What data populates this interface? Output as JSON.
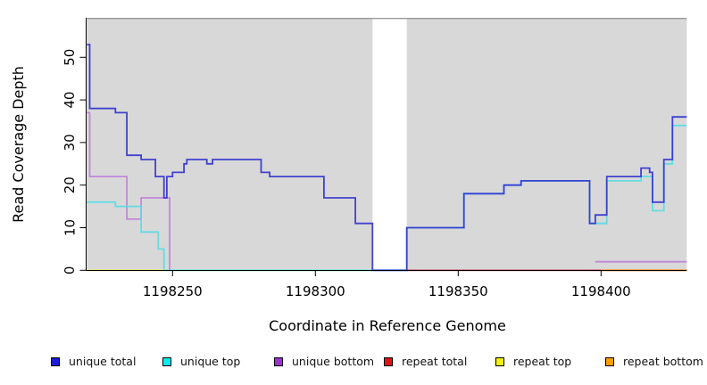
{
  "chart_data": {
    "type": "line",
    "step": true,
    "title": "",
    "xlabel": "Coordinate in Reference Genome",
    "ylabel": "Read Coverage Depth",
    "xticks": [
      1198250,
      1198300,
      1198350,
      1198400
    ],
    "yticks": [
      0,
      10,
      20,
      30,
      40,
      50
    ],
    "xlim": [
      1198220,
      1198430
    ],
    "ylim": [
      0,
      59
    ],
    "plot_bg_color": "#d8d8d8",
    "masked_region": {
      "x_start": 1198320,
      "x_end": 1198332,
      "color": "#ffffff"
    },
    "legend_position": "bottom",
    "grid": false,
    "series": [
      {
        "name": "unique total",
        "legend_color": "#1b1bd8",
        "line_color": "#3131cf",
        "z": 5,
        "x_end": 1198430,
        "steps": [
          [
            1198220,
            53
          ],
          [
            1198221,
            38
          ],
          [
            1198230,
            37
          ],
          [
            1198234,
            27
          ],
          [
            1198239,
            26
          ],
          [
            1198244,
            22
          ],
          [
            1198247,
            17
          ],
          [
            1198248,
            22
          ],
          [
            1198250,
            23
          ],
          [
            1198254,
            25
          ],
          [
            1198255,
            26
          ],
          [
            1198262,
            25
          ],
          [
            1198264,
            26
          ],
          [
            1198281,
            23
          ],
          [
            1198284,
            22
          ],
          [
            1198303,
            17
          ],
          [
            1198314,
            11
          ],
          [
            1198320,
            0
          ],
          [
            1198332,
            10
          ],
          [
            1198352,
            18
          ],
          [
            1198366,
            20
          ],
          [
            1198372,
            21
          ],
          [
            1198396,
            11
          ],
          [
            1198398,
            13
          ],
          [
            1198402,
            22
          ],
          [
            1198414,
            24
          ],
          [
            1198417,
            23
          ],
          [
            1198418,
            16
          ],
          [
            1198422,
            26
          ],
          [
            1198425,
            36
          ]
        ]
      },
      {
        "name": "unique top",
        "legend_color": "#00efef",
        "line_color": "#55dde4",
        "z": 4,
        "x_end": 1198430,
        "steps": [
          [
            1198220,
            16
          ],
          [
            1198230,
            15
          ],
          [
            1198239,
            9
          ],
          [
            1198245,
            5
          ],
          [
            1198247,
            0
          ],
          [
            1198332,
            10
          ],
          [
            1198352,
            18
          ],
          [
            1198366,
            20
          ],
          [
            1198372,
            21
          ],
          [
            1198396,
            11
          ],
          [
            1198402,
            21
          ],
          [
            1198414,
            22
          ],
          [
            1198418,
            14
          ],
          [
            1198422,
            25
          ],
          [
            1198425,
            34
          ]
        ]
      },
      {
        "name": "unique bottom",
        "legend_color": "#9933cc",
        "line_color": "#c07fda",
        "z": 3,
        "x_end": 1198430,
        "steps": [
          [
            1198220,
            37
          ],
          [
            1198221,
            22
          ],
          [
            1198234,
            12
          ],
          [
            1198239,
            17
          ],
          [
            1198249,
            0
          ],
          [
            1198332,
            null
          ],
          [
            1198398,
            2
          ]
        ]
      },
      {
        "name": "repeat total",
        "legend_color": "#e31114",
        "line_color": "#c24854",
        "z": 0,
        "x_end": 1198430,
        "steps": [
          [
            1198332,
            0
          ]
        ]
      },
      {
        "name": "repeat top",
        "legend_color": "#f2f20c",
        "line_color": "#e8e855",
        "z": 1,
        "x_end": 1198320,
        "steps": [
          [
            1198220,
            0
          ]
        ]
      },
      {
        "name": "repeat bottom",
        "legend_color": "#ff9e00",
        "line_color": "#ff9e1e",
        "z": 2,
        "x_end": 1198430,
        "steps": [
          [
            1198220,
            0
          ],
          [
            1198320,
            null
          ],
          [
            1198400,
            0
          ]
        ]
      }
    ]
  }
}
